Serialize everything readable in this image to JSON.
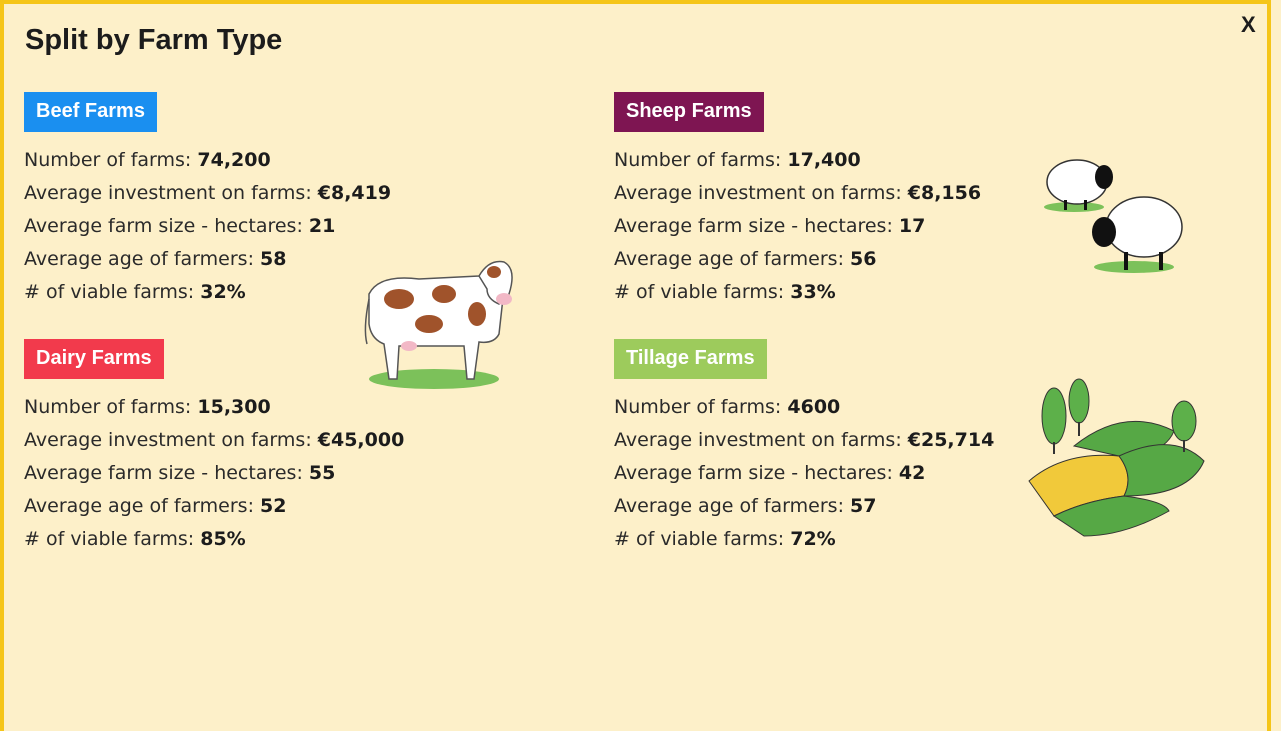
{
  "dialog": {
    "title": "Split by Farm Type",
    "close": "X",
    "sections": [
      {
        "heading": "Beef Farms",
        "color": "#1a8ff0",
        "rows": [
          {
            "label": "Number of farms:",
            "value": "74,200"
          },
          {
            "label": "Average investment on farms:",
            "value": "€8,419"
          },
          {
            "label": "Average farm size - hectares:",
            "value": "21"
          },
          {
            "label": "Average age of farmers:",
            "value": "58"
          },
          {
            "label": "# of viable farms:",
            "value": "32%"
          }
        ]
      },
      {
        "heading": "Dairy Farms",
        "color": "#f23a4c",
        "rows": [
          {
            "label": "Number of farms:",
            "value": "15,300"
          },
          {
            "label": "Average investment on farms:",
            "value": "€45,000"
          },
          {
            "label": "Average farm size - hectares:",
            "value": "55"
          },
          {
            "label": "Average age of farmers:",
            "value": "52"
          },
          {
            "label": "# of viable farms:",
            "value": "85%"
          }
        ]
      },
      {
        "heading": "Sheep Farms",
        "color": "#7e1552",
        "rows": [
          {
            "label": "Number of farms:",
            "value": "17,400"
          },
          {
            "label": "Average investment on farms:",
            "value": "€8,156"
          },
          {
            "label": "Average farm size - hectares:",
            "value": "17"
          },
          {
            "label": "Average age of farmers:",
            "value": "56"
          },
          {
            "label": "# of viable farms:",
            "value": "33%"
          }
        ]
      },
      {
        "heading": "Tillage Farms",
        "color": "#9dcb5c",
        "rows": [
          {
            "label": "Number of farms:",
            "value": "4600"
          },
          {
            "label": "Average investment on farms:",
            "value": "€25,714"
          },
          {
            "label": "Average farm size - hectares:",
            "value": "42"
          },
          {
            "label": "Average age of farmers:",
            "value": "57"
          },
          {
            "label": "# of viable farms:",
            "value": "72%"
          }
        ]
      }
    ]
  }
}
